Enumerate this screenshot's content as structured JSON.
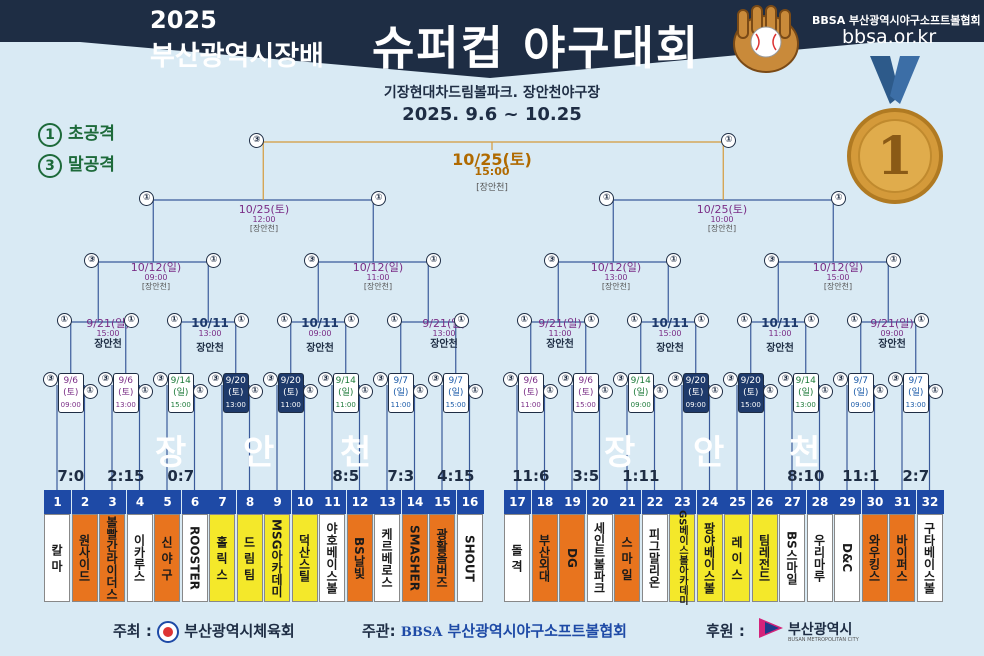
{
  "header": {
    "year": "2025",
    "cup": "부산광역시장배",
    "title": "슈퍼컵 야구대회",
    "org_name": "BBSA 부산광역시야구소프트볼협회",
    "url": "bbsa.or.kr",
    "venue": "기장현대차드림볼파크. 장안천야구장",
    "dates": "2025. 9.6 ~ 10.25"
  },
  "legend": [
    {
      "symbol": "1",
      "label": "초공격"
    },
    {
      "symbol": "3",
      "label": "말공격"
    }
  ],
  "watermark": [
    "장",
    "안",
    "천",
    "장",
    "안",
    "천"
  ],
  "final": {
    "date": "10/25(토)",
    "time": "15:00",
    "venue": "[장안천]"
  },
  "semis": [
    {
      "date": "10/25(토)",
      "time": "12:00",
      "venue": "[장안천]"
    },
    {
      "date": "10/25(토)",
      "time": "10:00",
      "venue": "[장안천]"
    }
  ],
  "quarters": [
    {
      "date": "10/12(일)",
      "time": "09:00",
      "venue": "[장안천]"
    },
    {
      "date": "10/12(일)",
      "time": "11:00",
      "venue": "[장안천]"
    },
    {
      "date": "10/12(일)",
      "time": "13:00",
      "venue": "[장안천]"
    },
    {
      "date": "10/12(일)",
      "time": "15:00",
      "venue": "[장안천]"
    }
  ],
  "round16": [
    {
      "date": "9/21(일)",
      "time": "15:00",
      "venue": "장안천"
    },
    {
      "date": "10/11",
      "time": "13:00",
      "venue": "장안천"
    },
    {
      "date": "10/11",
      "time": "09:00",
      "venue": "장안천"
    },
    {
      "date": "9/21(일)",
      "time": "13:00",
      "venue": "장안천"
    },
    {
      "date": "9/21(일)",
      "time": "11:00",
      "venue": "장안천"
    },
    {
      "date": "10/11",
      "time": "15:00",
      "venue": "장안천"
    },
    {
      "date": "10/11",
      "time": "11:00",
      "venue": "장안천"
    },
    {
      "date": "9/21(일)",
      "time": "09:00",
      "venue": "장안천"
    }
  ],
  "round32": [
    {
      "d1": "9/6",
      "d2": "(토)",
      "time": "09:00",
      "style": "purple"
    },
    {
      "d1": "9/6",
      "d2": "(토)",
      "time": "13:00",
      "style": "purple"
    },
    {
      "d1": "9/14",
      "d2": "(일)",
      "time": "15:00",
      "style": "green"
    },
    {
      "d1": "9/20",
      "d2": "(토)",
      "time": "13:00",
      "style": "dark"
    },
    {
      "d1": "9/20",
      "d2": "(토)",
      "time": "11:00",
      "style": "dark"
    },
    {
      "d1": "9/14",
      "d2": "(일)",
      "time": "11:00",
      "style": "green"
    },
    {
      "d1": "9/7",
      "d2": "(일)",
      "time": "11:00",
      "style": "blue"
    },
    {
      "d1": "9/7",
      "d2": "(일)",
      "time": "15:00",
      "style": "blue"
    },
    {
      "d1": "9/6",
      "d2": "(토)",
      "time": "11:00",
      "style": "purple"
    },
    {
      "d1": "9/6",
      "d2": "(토)",
      "time": "15:00",
      "style": "purple"
    },
    {
      "d1": "9/14",
      "d2": "(일)",
      "time": "09:00",
      "style": "green"
    },
    {
      "d1": "9/20",
      "d2": "(토)",
      "time": "09:00",
      "style": "dark"
    },
    {
      "d1": "9/20",
      "d2": "(토)",
      "time": "15:00",
      "style": "dark"
    },
    {
      "d1": "9/14",
      "d2": "(일)",
      "time": "13:00",
      "style": "green"
    },
    {
      "d1": "9/7",
      "d2": "(일)",
      "time": "09:00",
      "style": "blue"
    },
    {
      "d1": "9/7",
      "d2": "(일)",
      "time": "13:00",
      "style": "blue"
    }
  ],
  "scores": [
    "7:0",
    "2:15",
    "0:7",
    "",
    "",
    "8:5",
    "7:3",
    "4:15",
    "11:6",
    "3:5",
    "1:11",
    "",
    "",
    "8:10",
    "11:1",
    "2:7"
  ],
  "teams": [
    {
      "no": "1",
      "name": "칼 마",
      "color": "white"
    },
    {
      "no": "2",
      "name": "원사이드",
      "color": "orange"
    },
    {
      "no": "3",
      "name": "볼빨간라이더스",
      "color": "orange"
    },
    {
      "no": "4",
      "name": "이카루스",
      "color": "white"
    },
    {
      "no": "5",
      "name": "신 야 구",
      "color": "orange"
    },
    {
      "no": "6",
      "name": "ROOSTER",
      "color": "white"
    },
    {
      "no": "7",
      "name": "홀 릭 스",
      "color": "yellow"
    },
    {
      "no": "8",
      "name": "드 림 팀",
      "color": "yellow"
    },
    {
      "no": "9",
      "name": "MSG아카데미",
      "color": "yellow"
    },
    {
      "no": "10",
      "name": "덕산스틸",
      "color": "yellow"
    },
    {
      "no": "11",
      "name": "야호베이스볼",
      "color": "white"
    },
    {
      "no": "12",
      "name": "BS날빛",
      "color": "orange"
    },
    {
      "no": "13",
      "name": "케르베로스",
      "color": "white"
    },
    {
      "no": "14",
      "name": "SMASHER",
      "color": "orange"
    },
    {
      "no": "15",
      "name": "광활올버즈",
      "color": "orange"
    },
    {
      "no": "16",
      "name": "SHOUT",
      "color": "white"
    },
    {
      "no": "17",
      "name": "돌 격",
      "color": "white"
    },
    {
      "no": "18",
      "name": "부산외대",
      "color": "orange"
    },
    {
      "no": "19",
      "name": "DG",
      "color": "orange"
    },
    {
      "no": "20",
      "name": "세인트볼파크",
      "color": "white"
    },
    {
      "no": "21",
      "name": "스 마 일",
      "color": "orange"
    },
    {
      "no": "22",
      "name": "피그말리온",
      "color": "white"
    },
    {
      "no": "23",
      "name": "GS베이스볼아카데미",
      "color": "yellow"
    },
    {
      "no": "24",
      "name": "팡야베이스볼",
      "color": "yellow"
    },
    {
      "no": "25",
      "name": "레 이 스",
      "color": "yellow"
    },
    {
      "no": "26",
      "name": "팀레전드",
      "color": "yellow"
    },
    {
      "no": "27",
      "name": "BS스마일",
      "color": "white"
    },
    {
      "no": "28",
      "name": "우리마루",
      "color": "white"
    },
    {
      "no": "29",
      "name": "D&C",
      "color": "white"
    },
    {
      "no": "30",
      "name": "와우킹스",
      "color": "orange"
    },
    {
      "no": "31",
      "name": "바이퍼스",
      "color": "orange"
    },
    {
      "no": "32",
      "name": "구타베이스볼",
      "color": "white"
    }
  ],
  "inning_marks": {
    "first": "①",
    "third": "③"
  },
  "footer": {
    "host_label": "주최 :",
    "host": "부산광역시체육회",
    "organizer_label": "주관:",
    "organizer": "부산광역시야구소프트볼협회",
    "organizer_logo": "BBSA",
    "sponsor_label": "후원 :",
    "sponsor": "부산광역시",
    "sponsor_sub": "BUSAN METROPOLITAN CITY"
  },
  "medal_number": "1",
  "colors": {
    "navy": "#1e2d44",
    "orange": "#e8741e",
    "yellow": "#f4e82a",
    "blue": "#1e4aa6",
    "background": "#d9eaf4",
    "gold": "#d49a3a"
  }
}
